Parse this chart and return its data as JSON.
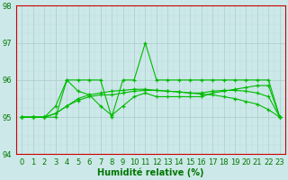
{
  "x": [
    0,
    1,
    2,
    3,
    4,
    5,
    6,
    7,
    8,
    9,
    10,
    11,
    12,
    13,
    14,
    15,
    16,
    17,
    18,
    19,
    20,
    21,
    22,
    23
  ],
  "series": [
    [
      95,
      95,
      95,
      95,
      96,
      96,
      96,
      96,
      95,
      96,
      96,
      97,
      96,
      96,
      96,
      96,
      96,
      96,
      96,
      96,
      96,
      96,
      96,
      95
    ],
    [
      95,
      95,
      95,
      95.3,
      96,
      95.7,
      95.6,
      95.3,
      95.05,
      95.3,
      95.55,
      95.65,
      95.55,
      95.55,
      95.55,
      95.55,
      95.55,
      95.65,
      95.7,
      95.75,
      95.8,
      95.85,
      95.85,
      95
    ],
    [
      95,
      95,
      95,
      95.1,
      95.3,
      95.45,
      95.55,
      95.6,
      95.6,
      95.65,
      95.7,
      95.72,
      95.72,
      95.7,
      95.68,
      95.65,
      95.65,
      95.7,
      95.72,
      95.72,
      95.7,
      95.65,
      95.55,
      95
    ],
    [
      95,
      95,
      95,
      95.1,
      95.3,
      95.5,
      95.6,
      95.65,
      95.7,
      95.72,
      95.75,
      95.75,
      95.72,
      95.7,
      95.68,
      95.65,
      95.62,
      95.6,
      95.55,
      95.5,
      95.42,
      95.35,
      95.2,
      95
    ]
  ],
  "line_color": "#00bb00",
  "marker_color": "#00bb00",
  "bg_color": "#cce8e8",
  "grid_major_color": "#aacccc",
  "grid_minor_color": "#bbdddd",
  "border_color": "#cc0000",
  "axis_label_color": "#007700",
  "xlabel": "Humidité relative (%)",
  "ylim": [
    94,
    98
  ],
  "yticks": [
    94,
    95,
    96,
    97,
    98
  ],
  "xlim": [
    -0.5,
    23.5
  ],
  "xticks": [
    0,
    1,
    2,
    3,
    4,
    5,
    6,
    7,
    8,
    9,
    10,
    11,
    12,
    13,
    14,
    15,
    16,
    17,
    18,
    19,
    20,
    21,
    22,
    23
  ],
  "marker_size": 3.0,
  "line_width": 0.8,
  "xlabel_fontsize": 7,
  "tick_fontsize": 6
}
